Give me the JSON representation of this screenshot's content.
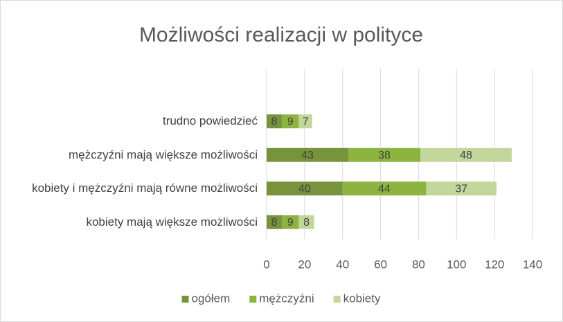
{
  "chart_data": {
    "type": "stacked-bar-horizontal",
    "title": "Możliwości realizacji w polityce",
    "categories": [
      "trudno powiedzieć",
      "mężczyźni mają większe możliwości",
      "kobiety i mężczyźni mają równe możliwości",
      "kobiety mają większe możliwości"
    ],
    "series": [
      {
        "name": "ogółem",
        "color": "#77933c",
        "values": [
          8,
          43,
          40,
          8
        ]
      },
      {
        "name": "mężczyźni",
        "color": "#8db441",
        "values": [
          9,
          38,
          44,
          9
        ]
      },
      {
        "name": "kobiety",
        "color": "#c3d69b",
        "values": [
          7,
          48,
          37,
          8
        ]
      }
    ],
    "xlim": [
      0,
      140
    ],
    "xticks": [
      0,
      20,
      40,
      60,
      80,
      100,
      120,
      140
    ],
    "grid": true,
    "legend": "bottom"
  }
}
